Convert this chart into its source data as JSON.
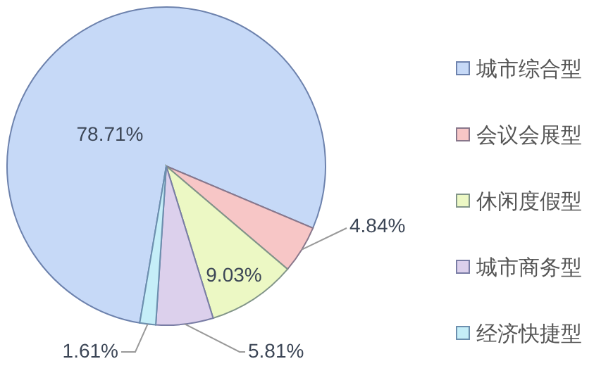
{
  "chart_data": {
    "type": "pie",
    "categories": [
      "城市综合型",
      "会议会展型",
      "休闲度假型",
      "城市商务型",
      "经济快捷型"
    ],
    "values": [
      78.71,
      4.84,
      9.03,
      5.81,
      1.61
    ],
    "colors": [
      "#c6d9f7",
      "#f7c6c6",
      "#ecf8c4",
      "#dcd0ec",
      "#c5eef8"
    ],
    "value_labels": [
      "78.71%",
      "4.84%",
      "9.03%",
      "5.81%",
      "1.61%"
    ],
    "legend": "right"
  }
}
